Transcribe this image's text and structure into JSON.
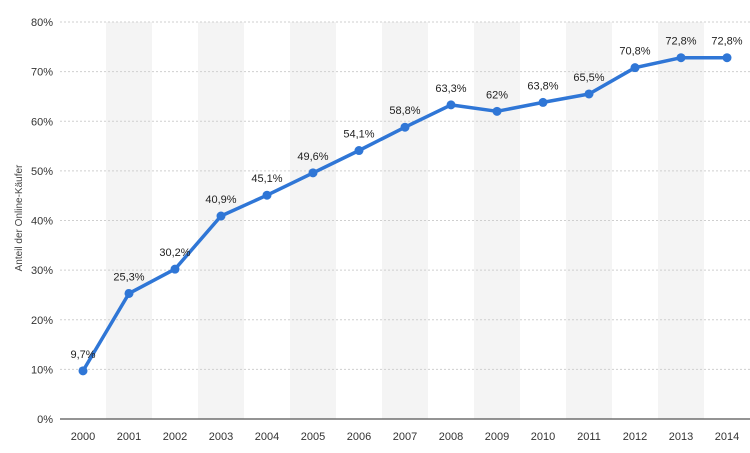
{
  "chart_data": {
    "type": "line",
    "categories": [
      "2000",
      "2001",
      "2002",
      "2003",
      "2004",
      "2005",
      "2006",
      "2007",
      "2008",
      "2009",
      "2010",
      "2011",
      "2012",
      "2013",
      "2014"
    ],
    "series": [
      {
        "values": [
          9.7,
          25.3,
          30.2,
          40.9,
          45.1,
          49.6,
          54.1,
          58.8,
          63.3,
          62,
          63.8,
          65.5,
          70.8,
          72.8,
          72.8
        ],
        "labels": [
          "9,7%",
          "25,3%",
          "30,2%",
          "40,9%",
          "45,1%",
          "49,6%",
          "54,1%",
          "58,8%",
          "63,3%",
          "62%",
          "63,8%",
          "65,5%",
          "70,8%",
          "72,8%",
          "72,8%"
        ],
        "color": "#2f76d6"
      }
    ],
    "ylabel": "Anteil der Online-Käufer",
    "ylim": [
      0,
      80
    ],
    "yticks": [
      0,
      10,
      20,
      30,
      40,
      50,
      60,
      70,
      80
    ],
    "ytick_labels": [
      "0%",
      "10%",
      "20%",
      "30%",
      "40%",
      "50%",
      "60%",
      "70%",
      "80%"
    ],
    "grid": "horizontal dashed",
    "band_color": "#f4f4f4"
  }
}
